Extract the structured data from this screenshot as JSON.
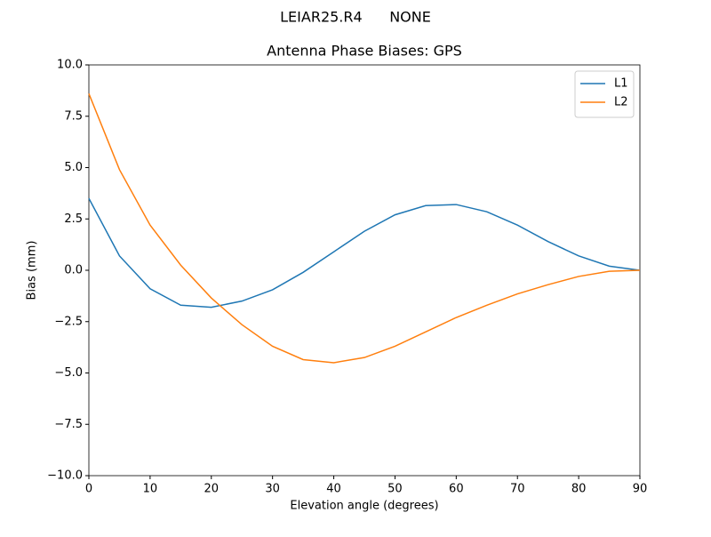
{
  "chart_data": {
    "type": "line",
    "suptitle": "LEIAR25.R4      NONE",
    "title": "Antenna Phase Biases: GPS",
    "x_label": "Elevation angle (degrees)",
    "y_label": "Bias (mm)",
    "x": [
      0,
      5,
      10,
      15,
      20,
      25,
      30,
      35,
      40,
      45,
      50,
      55,
      60,
      65,
      70,
      75,
      80,
      85,
      90
    ],
    "series": [
      {
        "name": "L1",
        "color": "#1f77b4",
        "values": [
          3.5,
          0.7,
          -0.9,
          -1.7,
          -1.8,
          -1.5,
          -0.95,
          -0.1,
          0.9,
          1.9,
          2.7,
          3.15,
          3.2,
          2.85,
          2.2,
          1.4,
          0.7,
          0.2,
          0
        ]
      },
      {
        "name": "L2",
        "color": "#ff7f0e",
        "values": [
          8.6,
          4.9,
          2.2,
          0.25,
          -1.35,
          -2.65,
          -3.7,
          -4.35,
          -4.5,
          -4.25,
          -3.7,
          -3.0,
          -2.3,
          -1.7,
          -1.15,
          -0.7,
          -0.3,
          -0.05,
          0
        ]
      }
    ],
    "xlim": [
      0,
      90
    ],
    "xticks": [
      0,
      10,
      20,
      30,
      40,
      50,
      60,
      70,
      80,
      90
    ],
    "ylim": [
      -10,
      10
    ],
    "yticks": [
      {
        "value": -10,
        "label": "−10.0"
      },
      {
        "value": -7.5,
        "label": "−7.5"
      },
      {
        "value": -5,
        "label": "−5.0"
      },
      {
        "value": -2.5,
        "label": "−2.5"
      },
      {
        "value": 0,
        "label": "0.0"
      },
      {
        "value": 2.5,
        "label": "2.5"
      },
      {
        "value": 5,
        "label": "5.0"
      },
      {
        "value": 7.5,
        "label": "7.5"
      },
      {
        "value": 10,
        "label": "10.0"
      }
    ],
    "legend": "upper right"
  }
}
